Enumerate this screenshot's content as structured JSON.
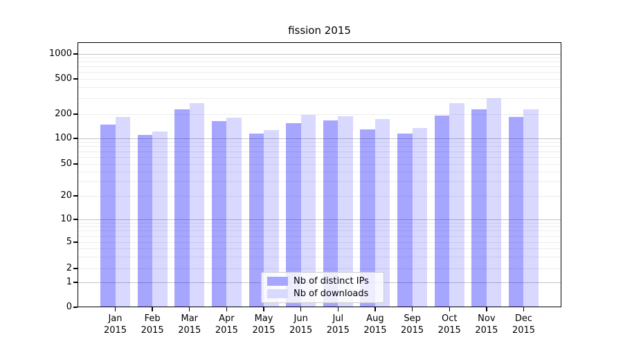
{
  "title": "fission 2015",
  "legend": {
    "items": [
      {
        "label": "Nb of distinct IPs",
        "color": "#a6a6ff"
      },
      {
        "label": "Nb of downloads",
        "color": "#d9d9ff"
      }
    ]
  },
  "chart_data": {
    "type": "bar",
    "title": "fission 2015",
    "categories": [
      "Jan 2015",
      "Feb 2015",
      "Mar 2015",
      "Apr 2015",
      "May 2015",
      "Jun 2015",
      "Jul 2015",
      "Aug 2015",
      "Sep 2015",
      "Oct 2015",
      "Nov 2015",
      "Dec 2015"
    ],
    "x_months": [
      "Jan",
      "Feb",
      "Mar",
      "Apr",
      "May",
      "Jun",
      "Jul",
      "Aug",
      "Sep",
      "Oct",
      "Nov",
      "Dec"
    ],
    "x_year": "2015",
    "series": [
      {
        "name": "Nb of distinct IPs",
        "color": "rgba(0,0,255,0.35)",
        "values": [
          150,
          110,
          225,
          164,
          116,
          154,
          166,
          129,
          114,
          191,
          226,
          185
        ]
      },
      {
        "name": "Nb of downloads",
        "color": "rgba(0,0,255,0.15)",
        "values": [
          185,
          122,
          265,
          181,
          126,
          196,
          187,
          175,
          135,
          266,
          300,
          226
        ]
      }
    ],
    "xlabel": "",
    "ylabel": "",
    "yscale": "symlog",
    "y_ticks": [
      0,
      1,
      2,
      5,
      10,
      20,
      50,
      100,
      200,
      500,
      1000
    ],
    "ylim": [
      0,
      1400
    ],
    "grid": "both",
    "legend_position": "lower center"
  }
}
